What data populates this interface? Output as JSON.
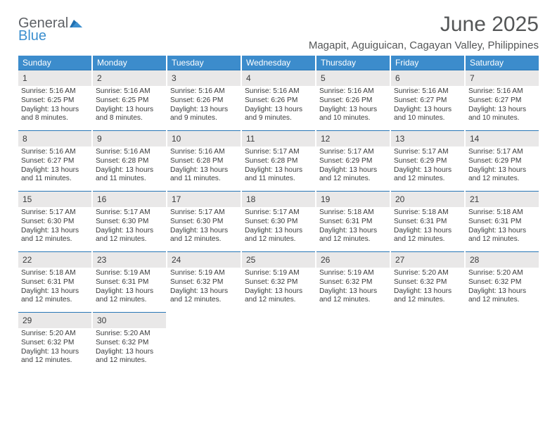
{
  "logo": {
    "general": "General",
    "blue": "Blue"
  },
  "title": "June 2025",
  "location": "Magapit, Aguiguican, Cagayan Valley, Philippines",
  "colors": {
    "header_bg": "#3c8ccc",
    "header_text": "#ffffff",
    "daynum_bg": "#e9e8e8",
    "daynum_border": "#2877b6",
    "text": "#3a3b3c",
    "logo_gray": "#5e6166",
    "logo_blue": "#3c8fcf",
    "page_bg": "#ffffff"
  },
  "dow": [
    "Sunday",
    "Monday",
    "Tuesday",
    "Wednesday",
    "Thursday",
    "Friday",
    "Saturday"
  ],
  "days": [
    {
      "n": "1",
      "sr": "5:16 AM",
      "ss": "6:25 PM",
      "dl": "13 hours and 8 minutes."
    },
    {
      "n": "2",
      "sr": "5:16 AM",
      "ss": "6:25 PM",
      "dl": "13 hours and 8 minutes."
    },
    {
      "n": "3",
      "sr": "5:16 AM",
      "ss": "6:26 PM",
      "dl": "13 hours and 9 minutes."
    },
    {
      "n": "4",
      "sr": "5:16 AM",
      "ss": "6:26 PM",
      "dl": "13 hours and 9 minutes."
    },
    {
      "n": "5",
      "sr": "5:16 AM",
      "ss": "6:26 PM",
      "dl": "13 hours and 10 minutes."
    },
    {
      "n": "6",
      "sr": "5:16 AM",
      "ss": "6:27 PM",
      "dl": "13 hours and 10 minutes."
    },
    {
      "n": "7",
      "sr": "5:16 AM",
      "ss": "6:27 PM",
      "dl": "13 hours and 10 minutes."
    },
    {
      "n": "8",
      "sr": "5:16 AM",
      "ss": "6:27 PM",
      "dl": "13 hours and 11 minutes."
    },
    {
      "n": "9",
      "sr": "5:16 AM",
      "ss": "6:28 PM",
      "dl": "13 hours and 11 minutes."
    },
    {
      "n": "10",
      "sr": "5:16 AM",
      "ss": "6:28 PM",
      "dl": "13 hours and 11 minutes."
    },
    {
      "n": "11",
      "sr": "5:17 AM",
      "ss": "6:28 PM",
      "dl": "13 hours and 11 minutes."
    },
    {
      "n": "12",
      "sr": "5:17 AM",
      "ss": "6:29 PM",
      "dl": "13 hours and 12 minutes."
    },
    {
      "n": "13",
      "sr": "5:17 AM",
      "ss": "6:29 PM",
      "dl": "13 hours and 12 minutes."
    },
    {
      "n": "14",
      "sr": "5:17 AM",
      "ss": "6:29 PM",
      "dl": "13 hours and 12 minutes."
    },
    {
      "n": "15",
      "sr": "5:17 AM",
      "ss": "6:30 PM",
      "dl": "13 hours and 12 minutes."
    },
    {
      "n": "16",
      "sr": "5:17 AM",
      "ss": "6:30 PM",
      "dl": "13 hours and 12 minutes."
    },
    {
      "n": "17",
      "sr": "5:17 AM",
      "ss": "6:30 PM",
      "dl": "13 hours and 12 minutes."
    },
    {
      "n": "18",
      "sr": "5:17 AM",
      "ss": "6:30 PM",
      "dl": "13 hours and 12 minutes."
    },
    {
      "n": "19",
      "sr": "5:18 AM",
      "ss": "6:31 PM",
      "dl": "13 hours and 12 minutes."
    },
    {
      "n": "20",
      "sr": "5:18 AM",
      "ss": "6:31 PM",
      "dl": "13 hours and 12 minutes."
    },
    {
      "n": "21",
      "sr": "5:18 AM",
      "ss": "6:31 PM",
      "dl": "13 hours and 12 minutes."
    },
    {
      "n": "22",
      "sr": "5:18 AM",
      "ss": "6:31 PM",
      "dl": "13 hours and 12 minutes."
    },
    {
      "n": "23",
      "sr": "5:19 AM",
      "ss": "6:31 PM",
      "dl": "13 hours and 12 minutes."
    },
    {
      "n": "24",
      "sr": "5:19 AM",
      "ss": "6:32 PM",
      "dl": "13 hours and 12 minutes."
    },
    {
      "n": "25",
      "sr": "5:19 AM",
      "ss": "6:32 PM",
      "dl": "13 hours and 12 minutes."
    },
    {
      "n": "26",
      "sr": "5:19 AM",
      "ss": "6:32 PM",
      "dl": "13 hours and 12 minutes."
    },
    {
      "n": "27",
      "sr": "5:20 AM",
      "ss": "6:32 PM",
      "dl": "13 hours and 12 minutes."
    },
    {
      "n": "28",
      "sr": "5:20 AM",
      "ss": "6:32 PM",
      "dl": "13 hours and 12 minutes."
    },
    {
      "n": "29",
      "sr": "5:20 AM",
      "ss": "6:32 PM",
      "dl": "13 hours and 12 minutes."
    },
    {
      "n": "30",
      "sr": "5:20 AM",
      "ss": "6:32 PM",
      "dl": "13 hours and 12 minutes."
    }
  ],
  "labels": {
    "sunrise": "Sunrise: ",
    "sunset": "Sunset: ",
    "daylight": "Daylight: "
  }
}
